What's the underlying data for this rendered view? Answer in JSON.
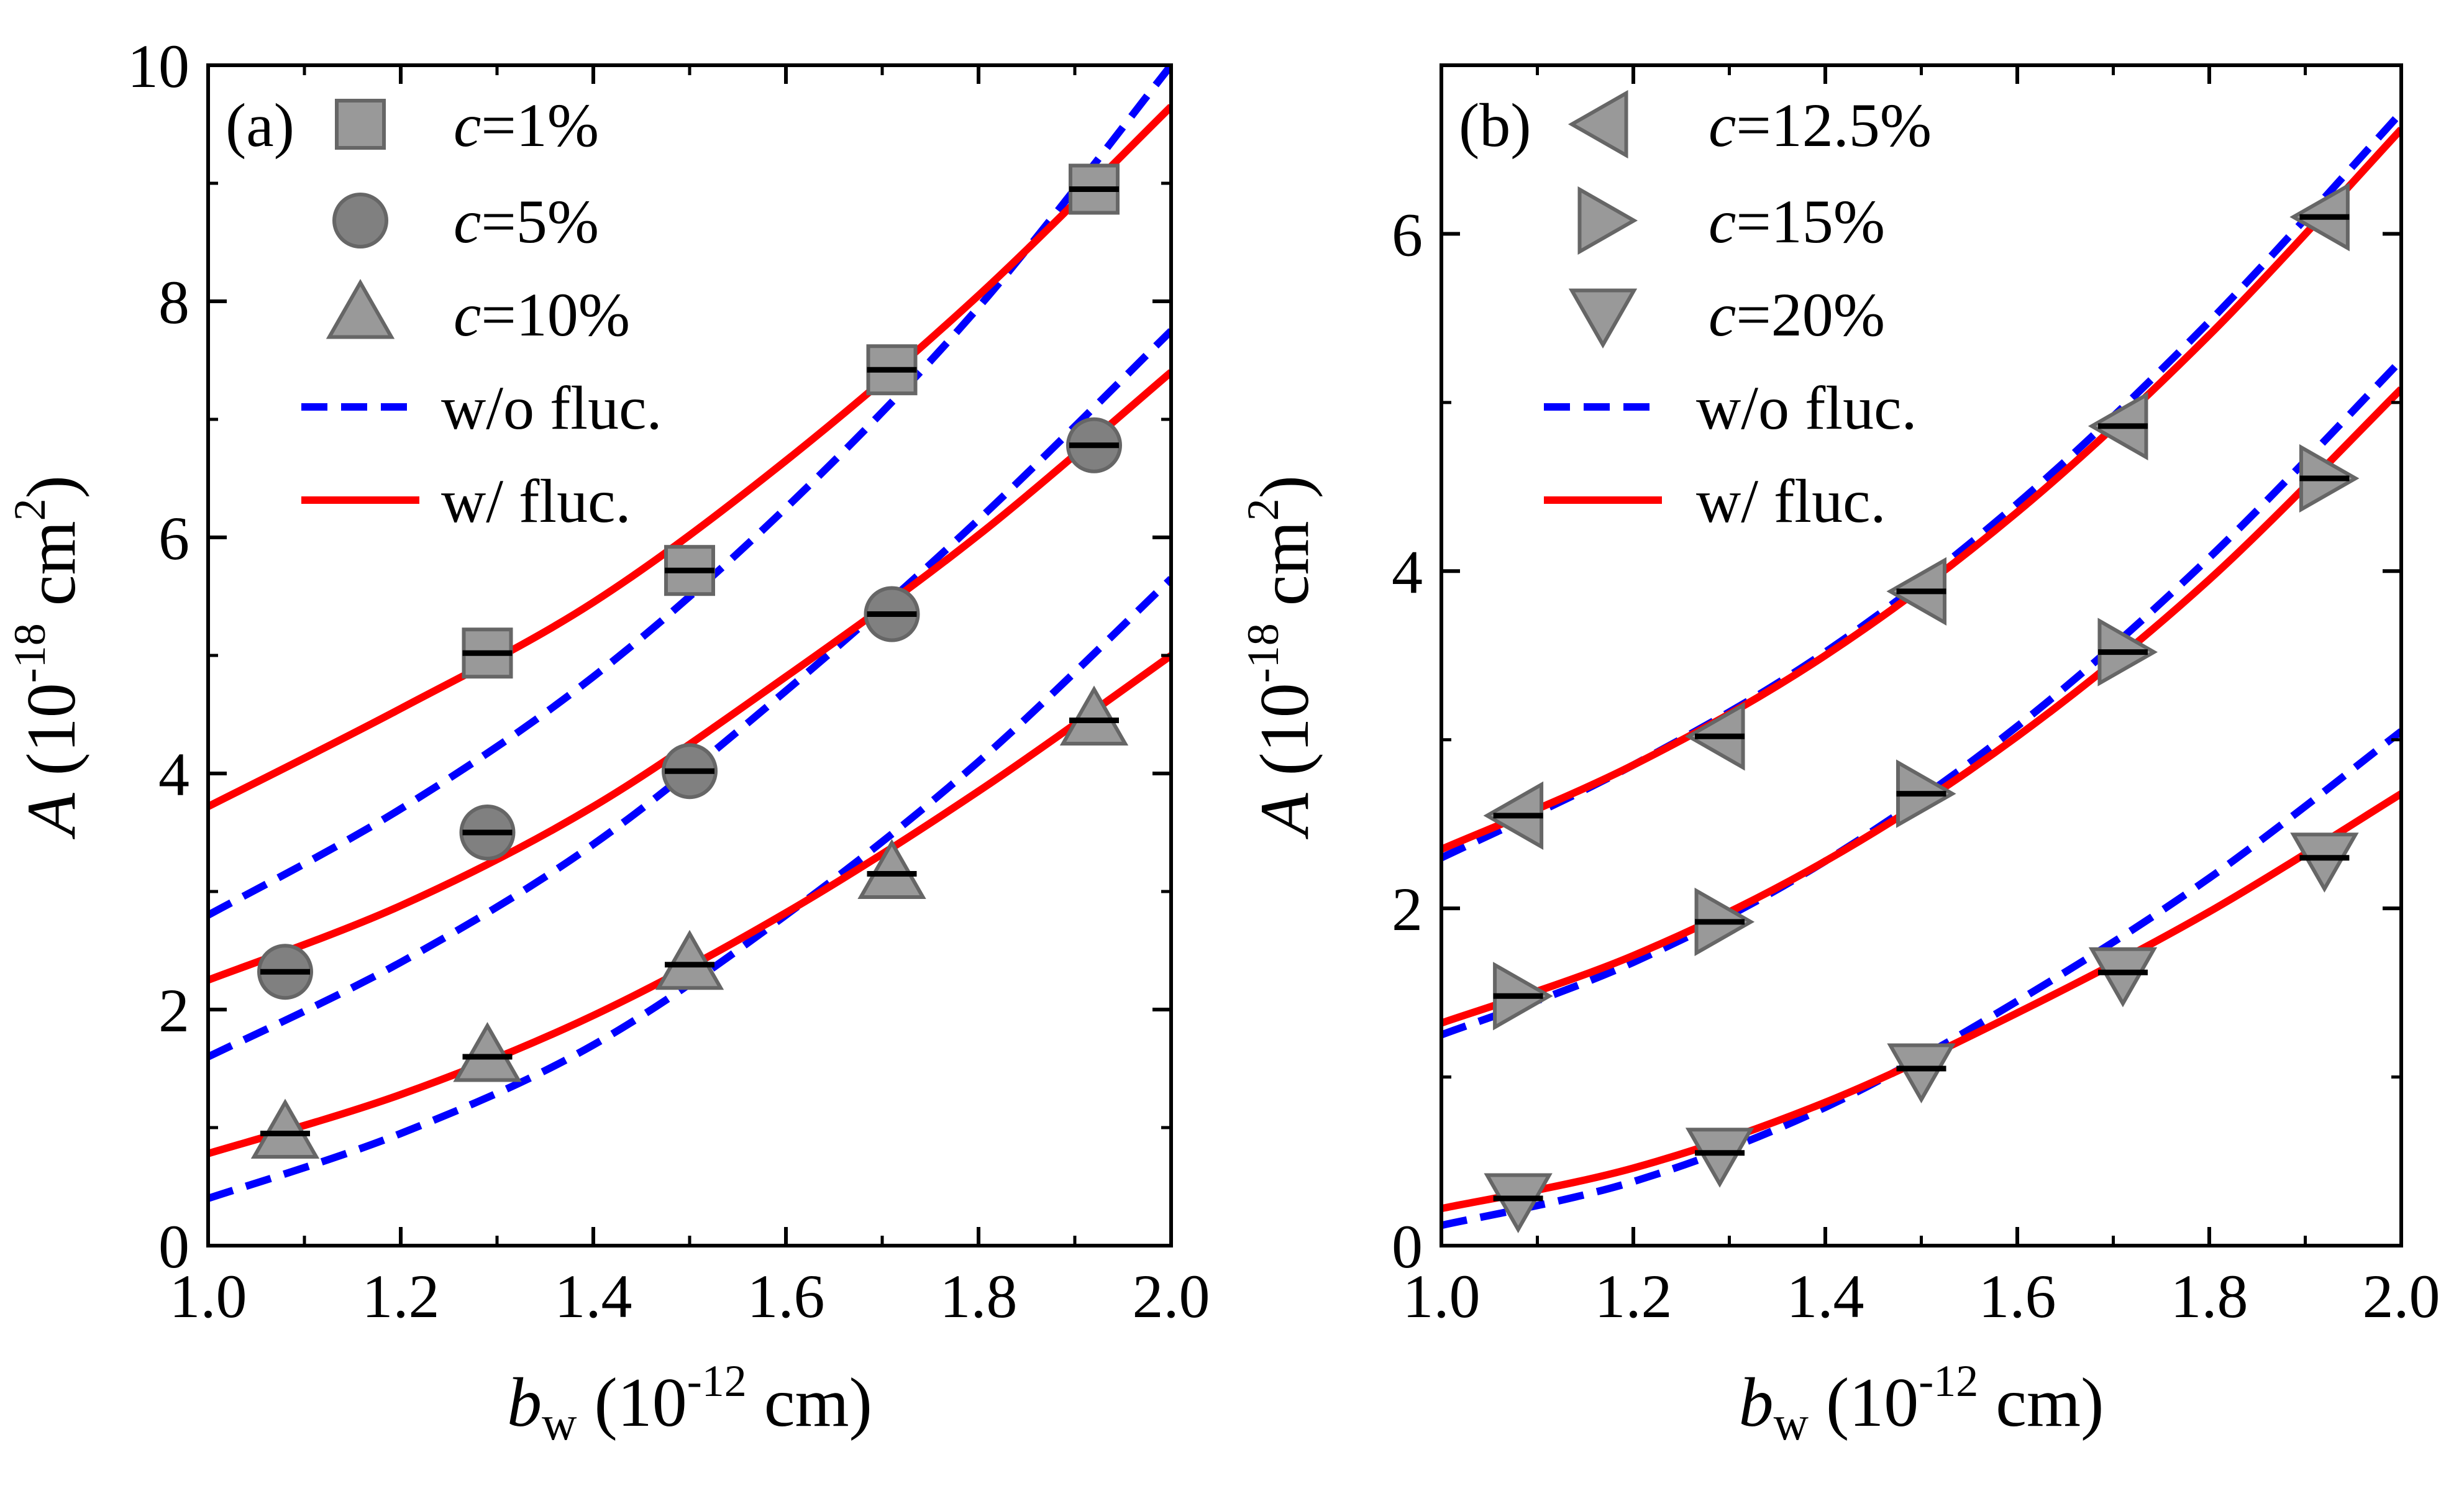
{
  "chart_data": [
    {
      "type": "line",
      "panel_label": "(a)",
      "xlabel": {
        "symbol": "b",
        "sub": "w",
        "text": " (10",
        "exp": "-12",
        "unit": " cm)"
      },
      "ylabel": {
        "symbol": "A",
        "text": " (10",
        "exp": "-18",
        "unit": " cm",
        "unit_exp": "2",
        "close": ")"
      },
      "xlim": [
        1.0,
        2.0
      ],
      "ylim": [
        0,
        10
      ],
      "x_ticks": [
        1.0,
        1.2,
        1.4,
        1.6,
        1.8,
        2.0
      ],
      "x_tick_labels": [
        "1.0",
        "1.2",
        "1.4",
        "1.6",
        "1.8",
        "2.0"
      ],
      "y_ticks": [
        0,
        2,
        4,
        6,
        8,
        10
      ],
      "y_tick_labels": [
        "0",
        "2",
        "4",
        "6",
        "8",
        "10"
      ],
      "legend_position": "top-left",
      "series": [
        {
          "name": "c=1%",
          "prefix": "c",
          "suffix": "=1%",
          "marker": "square",
          "x": [
            1.29,
            1.5,
            1.71,
            1.92
          ],
          "y": [
            5.02,
            5.72,
            7.42,
            8.95
          ]
        },
        {
          "name": "c=5%",
          "prefix": "c",
          "suffix": "=5%",
          "marker": "circle",
          "x": [
            1.08,
            1.29,
            1.5,
            1.71,
            1.92
          ],
          "y": [
            2.32,
            3.5,
            4.02,
            5.35,
            6.78
          ]
        },
        {
          "name": "c=10%",
          "prefix": "c",
          "suffix": "=10%",
          "marker": "triangle-up",
          "x": [
            1.08,
            1.29,
            1.5,
            1.71,
            1.92
          ],
          "y": [
            0.95,
            1.6,
            2.38,
            3.15,
            4.45
          ]
        }
      ],
      "fits": [
        {
          "name": "w/o fluc.",
          "style": "dashed",
          "color": "#0000ff",
          "curves": [
            {
              "x": [
                1.0,
                1.2,
                1.4,
                1.6,
                1.8,
                2.0
              ],
              "y": [
                2.8,
                3.7,
                4.82,
                6.25,
                7.95,
                10.0
              ]
            },
            {
              "x": [
                1.0,
                1.2,
                1.4,
                1.6,
                1.8,
                2.0
              ],
              "y": [
                1.6,
                2.4,
                3.4,
                4.7,
                6.15,
                7.75
              ]
            },
            {
              "x": [
                1.0,
                1.2,
                1.4,
                1.6,
                1.8,
                2.0
              ],
              "y": [
                0.4,
                0.95,
                1.7,
                2.8,
                4.1,
                5.65
              ]
            }
          ]
        },
        {
          "name": "w/ fluc.",
          "style": "solid",
          "color": "#ff0000",
          "curves": [
            {
              "x": [
                1.0,
                1.2,
                1.4,
                1.6,
                1.8,
                2.0
              ],
              "y": [
                3.72,
                4.55,
                5.45,
                6.65,
                8.05,
                9.65
              ]
            },
            {
              "x": [
                1.0,
                1.2,
                1.4,
                1.6,
                1.8,
                2.0
              ],
              "y": [
                2.25,
                2.88,
                3.72,
                4.82,
                6.02,
                7.4
              ]
            },
            {
              "x": [
                1.0,
                1.2,
                1.4,
                1.6,
                1.8,
                2.0
              ],
              "y": [
                0.78,
                1.28,
                1.95,
                2.82,
                3.85,
                5.0
              ]
            }
          ]
        }
      ]
    },
    {
      "type": "line",
      "panel_label": "(b)",
      "xlabel": {
        "symbol": "b",
        "sub": "w",
        "text": " (10",
        "exp": "-12",
        "unit": " cm)"
      },
      "ylabel": {
        "symbol": "A",
        "text": " (10",
        "exp": "-18",
        "unit": " cm",
        "unit_exp": "2",
        "close": ")"
      },
      "xlim": [
        1.0,
        2.0
      ],
      "ylim": [
        0,
        7
      ],
      "x_ticks": [
        1.0,
        1.2,
        1.4,
        1.6,
        1.8,
        2.0
      ],
      "x_tick_labels": [
        "1.0",
        "1.2",
        "1.4",
        "1.6",
        "1.8",
        "2.0"
      ],
      "y_ticks": [
        0,
        2,
        4,
        6
      ],
      "y_tick_labels": [
        "0",
        "2",
        "4",
        "6"
      ],
      "legend_position": "top-left",
      "series": [
        {
          "name": "c=12.5%",
          "prefix": "c",
          "suffix": "=12.5%",
          "marker": "triangle-left",
          "x": [
            1.08,
            1.29,
            1.5,
            1.71,
            1.92
          ],
          "y": [
            2.55,
            3.02,
            3.88,
            4.86,
            6.1
          ]
        },
        {
          "name": "c=15%",
          "prefix": "c",
          "suffix": "=15%",
          "marker": "triangle-right",
          "x": [
            1.08,
            1.29,
            1.5,
            1.71,
            1.92
          ],
          "y": [
            1.48,
            1.92,
            2.68,
            3.52,
            4.55
          ]
        },
        {
          "name": "c=20%",
          "prefix": "c",
          "suffix": "=20%",
          "marker": "triangle-down",
          "x": [
            1.08,
            1.29,
            1.5,
            1.71,
            1.92
          ],
          "y": [
            0.28,
            0.55,
            1.05,
            1.62,
            2.3
          ]
        }
      ],
      "fits": [
        {
          "name": "w/o fluc.",
          "style": "dashed",
          "color": "#0000ff",
          "curves": [
            {
              "x": [
                1.0,
                1.2,
                1.4,
                1.6,
                1.8,
                2.0
              ],
              "y": [
                2.3,
                2.85,
                3.52,
                4.4,
                5.48,
                6.72
              ]
            },
            {
              "x": [
                1.0,
                1.2,
                1.4,
                1.6,
                1.8,
                2.0
              ],
              "y": [
                1.25,
                1.68,
                2.28,
                3.08,
                4.08,
                5.25
              ]
            },
            {
              "x": [
                1.0,
                1.2,
                1.4,
                1.6,
                1.8,
                2.0
              ],
              "y": [
                0.12,
                0.38,
                0.82,
                1.45,
                2.18,
                3.05
              ]
            }
          ]
        },
        {
          "name": "w/ fluc.",
          "style": "solid",
          "color": "#ff0000",
          "curves": [
            {
              "x": [
                1.0,
                1.2,
                1.4,
                1.6,
                1.8,
                2.0
              ],
              "y": [
                2.35,
                2.85,
                3.5,
                4.35,
                5.4,
                6.62
              ]
            },
            {
              "x": [
                1.0,
                1.2,
                1.4,
                1.6,
                1.8,
                2.0
              ],
              "y": [
                1.32,
                1.72,
                2.28,
                3.02,
                3.95,
                5.08
              ]
            },
            {
              "x": [
                1.0,
                1.2,
                1.4,
                1.6,
                1.8,
                2.0
              ],
              "y": [
                0.22,
                0.46,
                0.85,
                1.38,
                1.98,
                2.68
              ]
            }
          ]
        }
      ]
    }
  ]
}
